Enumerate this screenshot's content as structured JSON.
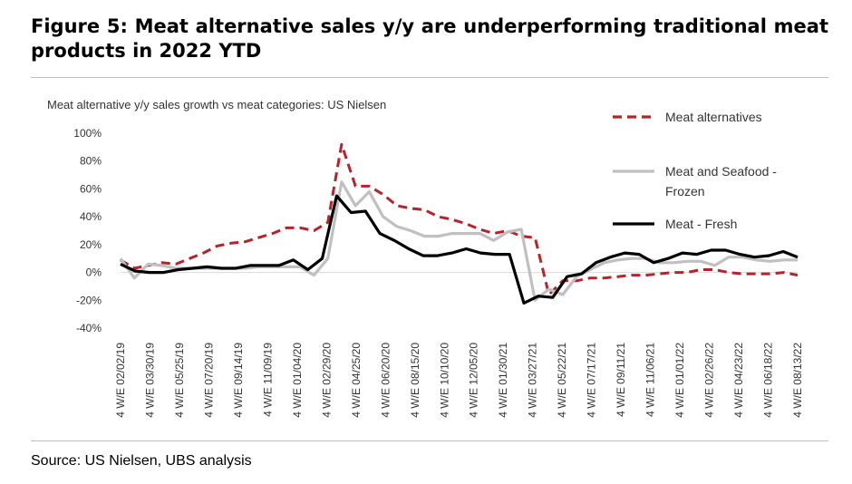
{
  "figure": {
    "title": "Figure 5: Meat alternative sales y/y are underperforming traditional meat products in 2022 YTD",
    "subtitle": "Meat alternative y/y sales growth vs meat categories: US Nielsen",
    "source": "Source: US Nielsen, UBS analysis"
  },
  "chart_data": {
    "type": "line",
    "ylim": [
      -40,
      100
    ],
    "yticks": [
      -40,
      -20,
      0,
      20,
      40,
      60,
      80,
      100
    ],
    "ytick_labels": [
      "-40%",
      "-20%",
      "0%",
      "20%",
      "40%",
      "60%",
      "80%",
      "100%"
    ],
    "xtick_labels": [
      "4 W/E 02/02/19",
      "4 W/E 03/30/19",
      "4 W/E 05/25/19",
      "4 W/E 07/20/19",
      "4 W/E 09/14/19",
      "4 W/E 11/09/19",
      "4 W/E 01/04/20",
      "4 W/E 02/29/20",
      "4 W/E 04/25/20",
      "4 W/E 06/20/20",
      "4 W/E 08/15/20",
      "4 W/E 10/10/20",
      "4 W/E 12/05/20",
      "4 W/E 01/30/21",
      "4 W/E 03/27/21",
      "4 W/E 05/22/21",
      "4 W/E 07/17/21",
      "4 W/E 09/11/21",
      "4 W/E 11/06/21",
      "4 W/E 01/01/22",
      "4 W/E 02/26/22",
      "4 W/E 04/23/22",
      "4 W/E 06/18/22",
      "4 W/E 08/13/22"
    ],
    "legend_position": "right",
    "grid": false,
    "series": [
      {
        "name": "Meat alternatives",
        "color": "#b5242a",
        "style": "dashed",
        "values": [
          9,
          3,
          5,
          7,
          6,
          10,
          14,
          19,
          21,
          22,
          25,
          28,
          32,
          32,
          30,
          36,
          92,
          62,
          62,
          56,
          48,
          46,
          45,
          40,
          38,
          35,
          31,
          28,
          30,
          26,
          25,
          -16,
          -6,
          -6,
          -4,
          -4,
          -3,
          -2,
          -2,
          -1,
          0,
          0,
          2,
          2,
          0,
          -1,
          -1,
          -1,
          0,
          -2
        ]
      },
      {
        "name": "Meat and Seafood - Frozen",
        "color": "#c0c0c0",
        "style": "solid",
        "values": [
          10,
          -4,
          6,
          5,
          3,
          3,
          3,
          3,
          3,
          3,
          4,
          4,
          4,
          4,
          -2,
          10,
          65,
          48,
          58,
          40,
          33,
          30,
          26,
          26,
          28,
          28,
          28,
          23,
          29,
          31,
          -20,
          -12,
          -16,
          -3,
          2,
          7,
          9,
          10,
          10,
          7,
          7,
          8,
          8,
          5,
          11,
          11,
          9,
          8,
          9,
          9
        ]
      },
      {
        "name": "Meat - Fresh",
        "color": "#000000",
        "style": "solid",
        "values": [
          6,
          1,
          0,
          0,
          2,
          3,
          4,
          3,
          3,
          5,
          5,
          5,
          9,
          2,
          10,
          55,
          43,
          44,
          28,
          23,
          17,
          12,
          12,
          14,
          17,
          14,
          13,
          13,
          -22,
          -17,
          -18,
          -3,
          -1,
          7,
          11,
          14,
          13,
          7,
          10,
          14,
          13,
          16,
          16,
          13,
          11,
          12,
          15,
          11
        ]
      }
    ]
  }
}
